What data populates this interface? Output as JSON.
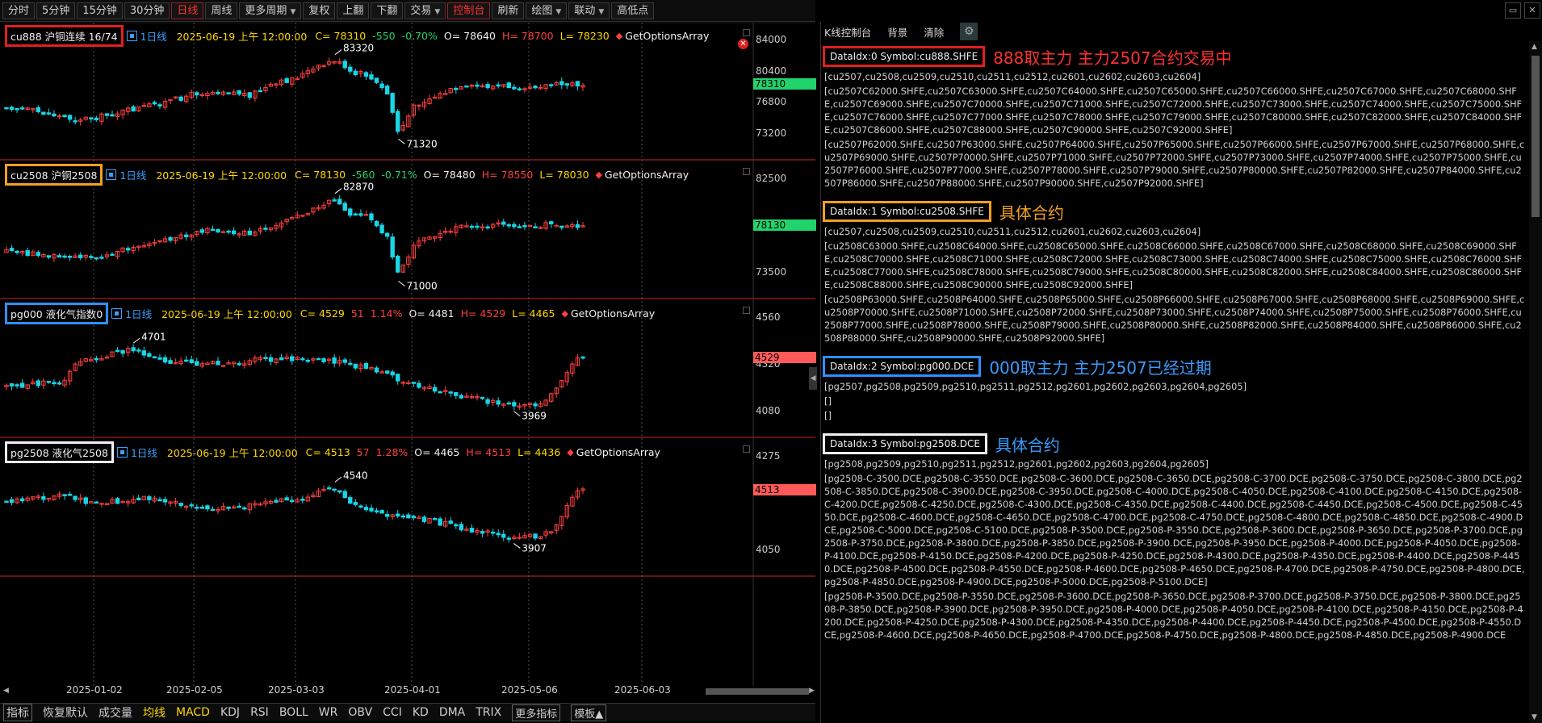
{
  "toolbar": {
    "buttons": [
      "分时",
      "5分钟",
      "15分钟",
      "30分钟",
      "日线",
      "周线",
      "更多周期",
      "复权",
      "上翻",
      "下翻",
      "交易",
      "控制台",
      "刷新",
      "绘图",
      "联动",
      "高低点"
    ],
    "active": [
      "日线",
      "控制台"
    ],
    "dropdowns": [
      "更多周期",
      "交易",
      "绘图",
      "联动"
    ]
  },
  "colors": {
    "up": "#ff4040",
    "down": "#18d6e6",
    "last_up": "#ff5a5a",
    "last_down": "#21d36b",
    "box_red": "#e02020",
    "box_orange": "#f0a020",
    "box_blue": "#2f8fff",
    "box_white": "#f0f0f0"
  },
  "panes": [
    {
      "symbol": "cu888 沪铜连续 16/74",
      "period": "1日线",
      "datetime": "2025-06-19 上午 12:00:00",
      "close": "C= 78310",
      "change": "-550",
      "change_pct": "-0.70%",
      "open": "O= 78640",
      "high": "H= 78700",
      "low": "L= 78230",
      "fn": "GetOptionsArray",
      "price_labels": [
        "84000",
        "80400",
        "76800",
        "73200"
      ],
      "last": "78310",
      "hi_marker": "83320",
      "lo_marker": "71320"
    },
    {
      "symbol": "cu2508 沪铜2508",
      "period": "1日线",
      "datetime": "2025-06-19 上午 12:00:00",
      "close": "C= 78130",
      "change": "-560",
      "change_pct": "-0.71%",
      "open": "O= 78480",
      "high": "H= 78550",
      "low": "L= 78030",
      "fn": "GetOptionsArray",
      "price_labels": [
        "82500",
        "73500"
      ],
      "last": "78130",
      "hi_marker": "82870",
      "lo_marker": "71000"
    },
    {
      "symbol": "pg000 液化气指数0",
      "period": "1日线",
      "datetime": "2025-06-19 上午 12:00:00",
      "close": "C= 4529",
      "change": "51",
      "change_pct": "1.14%",
      "open": "O= 4481",
      "high": "H= 4529",
      "low": "L= 4465",
      "fn": "GetOptionsArray",
      "price_labels": [
        "4560",
        "4320",
        "4080"
      ],
      "last": "4529",
      "hi_marker": "4701",
      "lo_marker": "3969"
    },
    {
      "symbol": "pg2508 液化气2508",
      "period": "1日线",
      "datetime": "2025-06-19 上午 12:00:00",
      "close": "C= 4513",
      "change": "57",
      "change_pct": "1.28%",
      "open": "O= 4465",
      "high": "H= 4513",
      "low": "L= 4436",
      "fn": "GetOptionsArray",
      "price_labels": [
        "4275",
        "4050"
      ],
      "last": "4513",
      "hi_marker": "4540",
      "lo_marker": "3907"
    }
  ],
  "x_axis": [
    "2025-01-02",
    "2025-02-05",
    "2025-03-03",
    "2025-04-01",
    "2025-05-06",
    "2025-06-03"
  ],
  "indicators": [
    "指标",
    "恢复默认",
    "成交量",
    "均线",
    "MACD",
    "KDJ",
    "RSI",
    "BOLL",
    "WR",
    "OBV",
    "CCI",
    "KD",
    "DMA",
    "TRIX",
    "更多指标",
    "模板▲"
  ],
  "console": {
    "toolbar": [
      "K线控制台",
      "背景",
      "清除"
    ],
    "blocks": [
      {
        "head": "DataIdx:0 Symbol:cu888.SHFE",
        "note": "888取主力 主力2507合约交易中",
        "lines": [
          "[cu2507,cu2508,cu2509,cu2510,cu2511,cu2512,cu2601,cu2602,cu2603,cu2604]",
          "[cu2507C62000.SHFE,cu2507C63000.SHFE,cu2507C64000.SHFE,cu2507C65000.SHFE,cu2507C66000.SHFE,cu2507C67000.SHFE,cu2507C68000.SHFE,cu2507C69000.SHFE,cu2507C70000.SHFE,cu2507C71000.SHFE,cu2507C72000.SHFE,cu2507C73000.SHFE,cu2507C74000.SHFE,cu2507C75000.SHFE,cu2507C76000.SHFE,cu2507C77000.SHFE,cu2507C78000.SHFE,cu2507C79000.SHFE,cu2507C80000.SHFE,cu2507C82000.SHFE,cu2507C84000.SHFE,cu2507C86000.SHFE,cu2507C88000.SHFE,cu2507C90000.SHFE,cu2507C92000.SHFE]",
          "[cu2507P62000.SHFE,cu2507P63000.SHFE,cu2507P64000.SHFE,cu2507P65000.SHFE,cu2507P66000.SHFE,cu2507P67000.SHFE,cu2507P68000.SHFE,cu2507P69000.SHFE,cu2507P70000.SHFE,cu2507P71000.SHFE,cu2507P72000.SHFE,cu2507P73000.SHFE,cu2507P74000.SHFE,cu2507P75000.SHFE,cu2507P76000.SHFE,cu2507P77000.SHFE,cu2507P78000.SHFE,cu2507P79000.SHFE,cu2507P80000.SHFE,cu2507P82000.SHFE,cu2507P84000.SHFE,cu2507P86000.SHFE,cu2507P88000.SHFE,cu2507P90000.SHFE,cu2507P92000.SHFE]"
        ]
      },
      {
        "head": "DataIdx:1 Symbol:cu2508.SHFE",
        "note": "具体合约",
        "lines": [
          "[cu2507,cu2508,cu2509,cu2510,cu2511,cu2512,cu2601,cu2602,cu2603,cu2604]",
          "[cu2508C63000.SHFE,cu2508C64000.SHFE,cu2508C65000.SHFE,cu2508C66000.SHFE,cu2508C67000.SHFE,cu2508C68000.SHFE,cu2508C69000.SHFE,cu2508C70000.SHFE,cu2508C71000.SHFE,cu2508C72000.SHFE,cu2508C73000.SHFE,cu2508C74000.SHFE,cu2508C75000.SHFE,cu2508C76000.SHFE,cu2508C77000.SHFE,cu2508C78000.SHFE,cu2508C79000.SHFE,cu2508C80000.SHFE,cu2508C82000.SHFE,cu2508C84000.SHFE,cu2508C86000.SHFE,cu2508C88000.SHFE,cu2508C90000.SHFE,cu2508C92000.SHFE]",
          "[cu2508P63000.SHFE,cu2508P64000.SHFE,cu2508P65000.SHFE,cu2508P66000.SHFE,cu2508P67000.SHFE,cu2508P68000.SHFE,cu2508P69000.SHFE,cu2508P70000.SHFE,cu2508P71000.SHFE,cu2508P72000.SHFE,cu2508P73000.SHFE,cu2508P74000.SHFE,cu2508P75000.SHFE,cu2508P76000.SHFE,cu2508P77000.SHFE,cu2508P78000.SHFE,cu2508P79000.SHFE,cu2508P80000.SHFE,cu2508P82000.SHFE,cu2508P84000.SHFE,cu2508P86000.SHFE,cu2508P88000.SHFE,cu2508P90000.SHFE,cu2508P92000.SHFE]"
        ]
      },
      {
        "head": "DataIdx:2 Symbol:pg000.DCE",
        "note": "000取主力 主力2507已经过期",
        "lines": [
          "[pg2507,pg2508,pg2509,pg2510,pg2511,pg2512,pg2601,pg2602,pg2603,pg2604,pg2605]",
          "[]",
          "[]"
        ]
      },
      {
        "head": "DataIdx:3 Symbol:pg2508.DCE",
        "note": "具体合约",
        "lines": [
          "[pg2508,pg2509,pg2510,pg2511,pg2512,pg2601,pg2602,pg2603,pg2604,pg2605]",
          "[pg2508-C-3500.DCE,pg2508-C-3550.DCE,pg2508-C-3600.DCE,pg2508-C-3650.DCE,pg2508-C-3700.DCE,pg2508-C-3750.DCE,pg2508-C-3800.DCE,pg2508-C-3850.DCE,pg2508-C-3900.DCE,pg2508-C-3950.DCE,pg2508-C-4000.DCE,pg2508-C-4050.DCE,pg2508-C-4100.DCE,pg2508-C-4150.DCE,pg2508-C-4200.DCE,pg2508-C-4250.DCE,pg2508-C-4300.DCE,pg2508-C-4350.DCE,pg2508-C-4400.DCE,pg2508-C-4450.DCE,pg2508-C-4500.DCE,pg2508-C-4550.DCE,pg2508-C-4600.DCE,pg2508-C-4650.DCE,pg2508-C-4700.DCE,pg2508-C-4750.DCE,pg2508-C-4800.DCE,pg2508-C-4850.DCE,pg2508-C-4900.DCE,pg2508-C-5000.DCE,pg2508-C-5100.DCE,pg2508-P-3500.DCE,pg2508-P-3550.DCE,pg2508-P-3600.DCE,pg2508-P-3650.DCE,pg2508-P-3700.DCE,pg2508-P-3750.DCE,pg2508-P-3800.DCE,pg2508-P-3850.DCE,pg2508-P-3900.DCE,pg2508-P-3950.DCE,pg2508-P-4000.DCE,pg2508-P-4050.DCE,pg2508-P-4100.DCE,pg2508-P-4150.DCE,pg2508-P-4200.DCE,pg2508-P-4250.DCE,pg2508-P-4300.DCE,pg2508-P-4350.DCE,pg2508-P-4400.DCE,pg2508-P-4450.DCE,pg2508-P-4500.DCE,pg2508-P-4550.DCE,pg2508-P-4600.DCE,pg2508-P-4650.DCE,pg2508-P-4700.DCE,pg2508-P-4750.DCE,pg2508-P-4800.DCE,pg2508-P-4850.DCE,pg2508-P-4900.DCE,pg2508-P-5000.DCE,pg2508-P-5100.DCE]",
          "[pg2508-P-3500.DCE,pg2508-P-3550.DCE,pg2508-P-3600.DCE,pg2508-P-3650.DCE,pg2508-P-3700.DCE,pg2508-P-3750.DCE,pg2508-P-3800.DCE,pg2508-P-3850.DCE,pg2508-P-3900.DCE,pg2508-P-3950.DCE,pg2508-P-4000.DCE,pg2508-P-4050.DCE,pg2508-P-4100.DCE,pg2508-P-4150.DCE,pg2508-P-4200.DCE,pg2508-P-4250.DCE,pg2508-P-4300.DCE,pg2508-P-4350.DCE,pg2508-P-4400.DCE,pg2508-P-4450.DCE,pg2508-P-4500.DCE,pg2508-P-4550.DCE,pg2508-P-4600.DCE,pg2508-P-4650.DCE,pg2508-P-4700.DCE,pg2508-P-4750.DCE,pg2508-P-4800.DCE,pg2508-P-4850.DCE,pg2508-P-4900.DCE"
        ]
      }
    ]
  }
}
